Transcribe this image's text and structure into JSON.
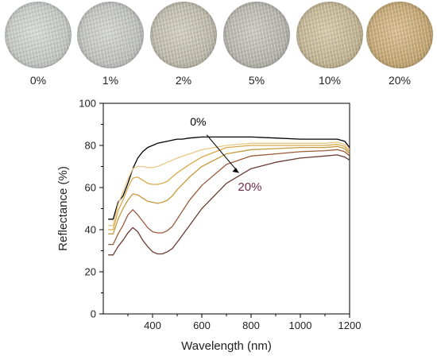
{
  "samples": [
    {
      "label": "0%",
      "color": "#c9ccc9"
    },
    {
      "label": "1%",
      "color": "#c3c5c2"
    },
    {
      "label": "2%",
      "color": "#c0bcab"
    },
    {
      "label": "5%",
      "color": "#b7b6ad"
    },
    {
      "label": "10%",
      "color": "#c6b68d"
    },
    {
      "label": "20%",
      "color": "#c9a567"
    }
  ],
  "chart_data": {
    "type": "line",
    "xlabel": "Wavelength (nm)",
    "ylabel": "Reflectance (%)",
    "xlim": [
      200,
      1200
    ],
    "ylim": [
      0,
      100
    ],
    "xticks": [
      400,
      600,
      800,
      1000,
      1200
    ],
    "yticks": [
      0,
      20,
      40,
      60,
      80,
      100
    ],
    "grid": false,
    "annotations": [
      {
        "text": "0%",
        "color": "#000000"
      },
      {
        "text": "20%",
        "color": "#6b2a4a"
      }
    ],
    "series": [
      {
        "color": "#000000",
        "x": [
          220,
          240,
          260,
          280,
          300,
          320,
          340,
          360,
          380,
          400,
          420,
          440,
          460,
          480,
          500,
          520,
          550,
          600,
          700,
          800,
          900,
          1000,
          1050,
          1100,
          1150,
          1180,
          1200
        ],
        "y": [
          45,
          45,
          53,
          56,
          62,
          69,
          74,
          77,
          79,
          80,
          81,
          81.5,
          82,
          82.5,
          83,
          83,
          83.5,
          84,
          84,
          84,
          83.5,
          83,
          83,
          83,
          83,
          82,
          79
        ]
      },
      {
        "color": "#e8c98a",
        "x": [
          220,
          240,
          260,
          280,
          300,
          320,
          340,
          360,
          380,
          400,
          420,
          440,
          460,
          480,
          500,
          550,
          600,
          700,
          800,
          900,
          1000,
          1100,
          1150,
          1180,
          1200
        ],
        "y": [
          42,
          42,
          52,
          58,
          64,
          69,
          70,
          70,
          69.5,
          69.5,
          70,
          71,
          72,
          73,
          74,
          76,
          78,
          80,
          81,
          81,
          81,
          81,
          81.5,
          80.5,
          78
        ]
      },
      {
        "color": "#d9a94a",
        "x": [
          220,
          240,
          260,
          280,
          300,
          320,
          340,
          360,
          380,
          400,
          420,
          440,
          460,
          480,
          500,
          550,
          600,
          700,
          800,
          900,
          1000,
          1100,
          1150,
          1180,
          1200
        ],
        "y": [
          40,
          40,
          49,
          54,
          60,
          64.5,
          65,
          63.5,
          62,
          61.5,
          61.5,
          62,
          63,
          65,
          67,
          71,
          74.5,
          79,
          80,
          80,
          80,
          80,
          80.5,
          79.5,
          77
        ]
      },
      {
        "color": "#c49a3c",
        "x": [
          220,
          240,
          260,
          280,
          300,
          320,
          340,
          360,
          380,
          400,
          420,
          440,
          460,
          480,
          500,
          550,
          600,
          700,
          800,
          900,
          1000,
          1100,
          1150,
          1180,
          1200
        ],
        "y": [
          38,
          38,
          45,
          50,
          54,
          57,
          56.5,
          55,
          53.5,
          53,
          52.5,
          53,
          54,
          56,
          59,
          65,
          70,
          76,
          78,
          78.5,
          79,
          79,
          79.5,
          78.5,
          76
        ]
      },
      {
        "color": "#9a5b3c",
        "x": [
          220,
          240,
          260,
          280,
          300,
          320,
          340,
          360,
          380,
          400,
          420,
          440,
          460,
          480,
          500,
          550,
          600,
          700,
          800,
          900,
          1000,
          1100,
          1150,
          1180,
          1200
        ],
        "y": [
          33,
          33,
          38,
          42,
          47,
          49.5,
          47,
          44,
          41,
          39,
          38.5,
          38.5,
          39.5,
          41.5,
          45,
          54,
          61,
          71,
          75,
          76,
          77,
          77.5,
          78,
          77,
          75
        ]
      },
      {
        "color": "#6b3b32",
        "x": [
          220,
          240,
          260,
          280,
          300,
          320,
          340,
          360,
          380,
          400,
          420,
          440,
          460,
          480,
          500,
          550,
          600,
          700,
          800,
          900,
          1000,
          1100,
          1150,
          1180,
          1200
        ],
        "y": [
          28,
          28,
          32,
          35,
          38.5,
          41,
          39,
          35,
          32,
          29.5,
          28.5,
          28.5,
          29.5,
          31,
          34,
          42,
          50,
          62,
          69,
          72,
          74,
          75,
          75.5,
          74.5,
          73
        ]
      }
    ]
  }
}
